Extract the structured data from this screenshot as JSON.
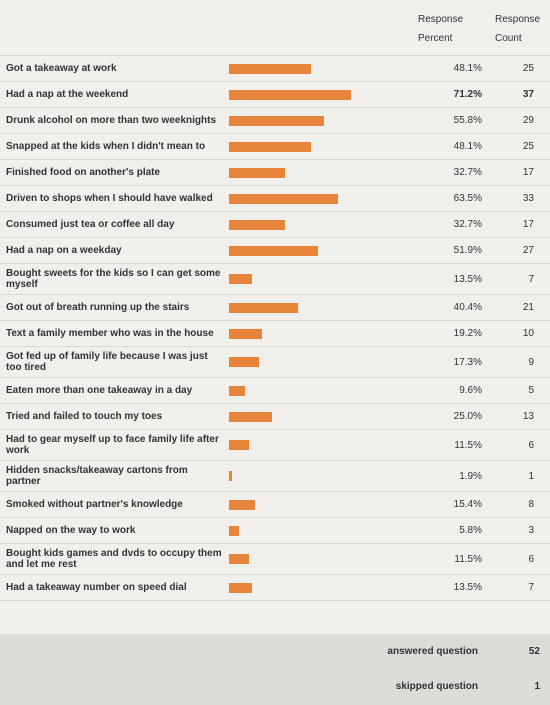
{
  "header": {
    "percent_heading": "Response Percent",
    "count_heading": "Response Count"
  },
  "table": {
    "bar_color": "#e8843a",
    "rows": [
      {
        "label": "Got a takeaway at work",
        "percent": {
          "value": 48.1,
          "label": "48.1%"
        },
        "count": 25
      },
      {
        "label": "Had a nap at the weekend",
        "percent": {
          "value": 71.2,
          "label": "71.2%"
        },
        "count": 37,
        "bold": true
      },
      {
        "label": "Drunk alcohol on more than two weeknights",
        "percent": {
          "value": 55.8,
          "label": "55.8%"
        },
        "count": 29
      },
      {
        "label": "Snapped at the kids when I didn't mean to",
        "percent": {
          "value": 48.1,
          "label": "48.1%"
        },
        "count": 25
      },
      {
        "label": "Finished food on another's plate",
        "percent": {
          "value": 32.7,
          "label": "32.7%"
        },
        "count": 17
      },
      {
        "label": "Driven to shops when I should have walked",
        "percent": {
          "value": 63.5,
          "label": "63.5%"
        },
        "count": 33
      },
      {
        "label": "Consumed just tea or coffee all day",
        "percent": {
          "value": 32.7,
          "label": "32.7%"
        },
        "count": 17
      },
      {
        "label": "Had a nap on a weekday",
        "percent": {
          "value": 51.9,
          "label": "51.9%"
        },
        "count": 27
      },
      {
        "label": "Bought sweets for the kids so I can get some myself",
        "percent": {
          "value": 13.5,
          "label": "13.5%"
        },
        "count": 7
      },
      {
        "label": "Got out of breath running up the stairs",
        "percent": {
          "value": 40.4,
          "label": "40.4%"
        },
        "count": 21
      },
      {
        "label": "Text a family member who was in the house",
        "percent": {
          "value": 19.2,
          "label": "19.2%"
        },
        "count": 10
      },
      {
        "label": "Got fed up of family life because I was just too tired",
        "percent": {
          "value": 17.3,
          "label": "17.3%"
        },
        "count": 9
      },
      {
        "label": "Eaten more than one takeaway in a day",
        "percent": {
          "value": 9.6,
          "label": "9.6%"
        },
        "count": 5
      },
      {
        "label": "Tried and failed to touch my toes",
        "percent": {
          "value": 25.0,
          "label": "25.0%"
        },
        "count": 13
      },
      {
        "label": "Had to gear myself up to face family life after work",
        "percent": {
          "value": 11.5,
          "label": "11.5%"
        },
        "count": 6
      },
      {
        "label": "Hidden snacks/takeaway cartons from partner",
        "percent": {
          "value": 1.9,
          "label": "1.9%"
        },
        "count": 1
      },
      {
        "label": "Smoked without partner's knowledge",
        "percent": {
          "value": 15.4,
          "label": "15.4%"
        },
        "count": 8
      },
      {
        "label": "Napped on the way to work",
        "percent": {
          "value": 5.8,
          "label": "5.8%"
        },
        "count": 3
      },
      {
        "label": "Bought kids games and dvds to occupy them and let me rest",
        "percent": {
          "value": 11.5,
          "label": "11.5%"
        },
        "count": 6
      },
      {
        "label": "Had a takeaway number on speed dial",
        "percent": {
          "value": 13.5,
          "label": "13.5%"
        },
        "count": 7
      }
    ]
  },
  "footer": {
    "answered_label": "answered question",
    "answered": 52,
    "skipped_label": "skipped question",
    "skipped": 1
  }
}
